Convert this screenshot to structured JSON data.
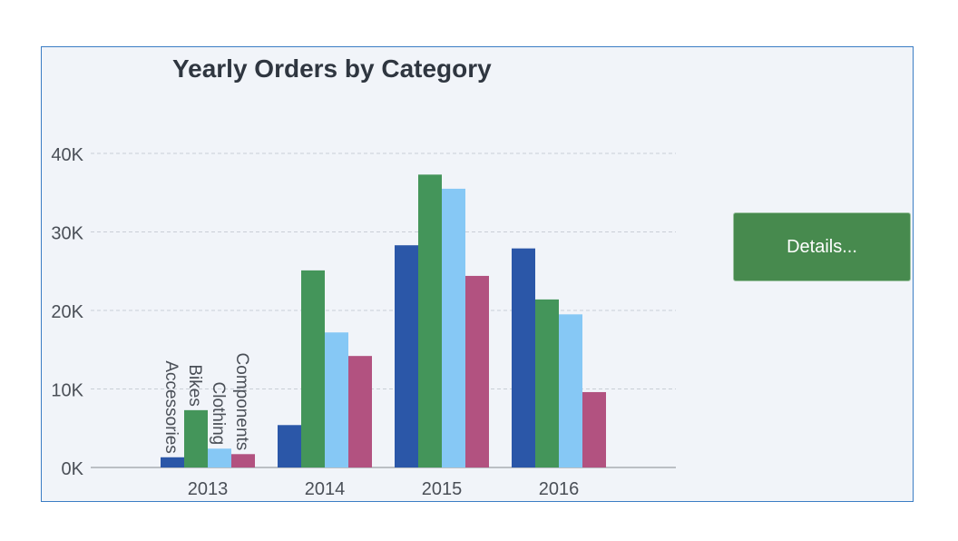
{
  "chart_data": {
    "type": "bar",
    "title": "Yearly Orders by Category",
    "categories": [
      "2013",
      "2014",
      "2015",
      "2016"
    ],
    "series": [
      {
        "name": "Accessories",
        "color": "#2b57a8",
        "values": [
          1300,
          5400,
          28300,
          27900
        ]
      },
      {
        "name": "Bikes",
        "color": "#44955a",
        "values": [
          7300,
          25100,
          37300,
          21400
        ]
      },
      {
        "name": "Clothing",
        "color": "#86c8f5",
        "values": [
          2400,
          17200,
          35500,
          19500
        ]
      },
      {
        "name": "Components",
        "color": "#b25280",
        "values": [
          1700,
          14200,
          24400,
          9600
        ]
      }
    ],
    "yticks": [
      0,
      10000,
      20000,
      30000,
      40000
    ],
    "ytick_labels": [
      "0K",
      "10K",
      "20K",
      "30K",
      "40K"
    ],
    "ylim": [
      0,
      40000
    ],
    "grid": true,
    "xlabel": "",
    "ylabel": ""
  },
  "details_button": "Details..."
}
